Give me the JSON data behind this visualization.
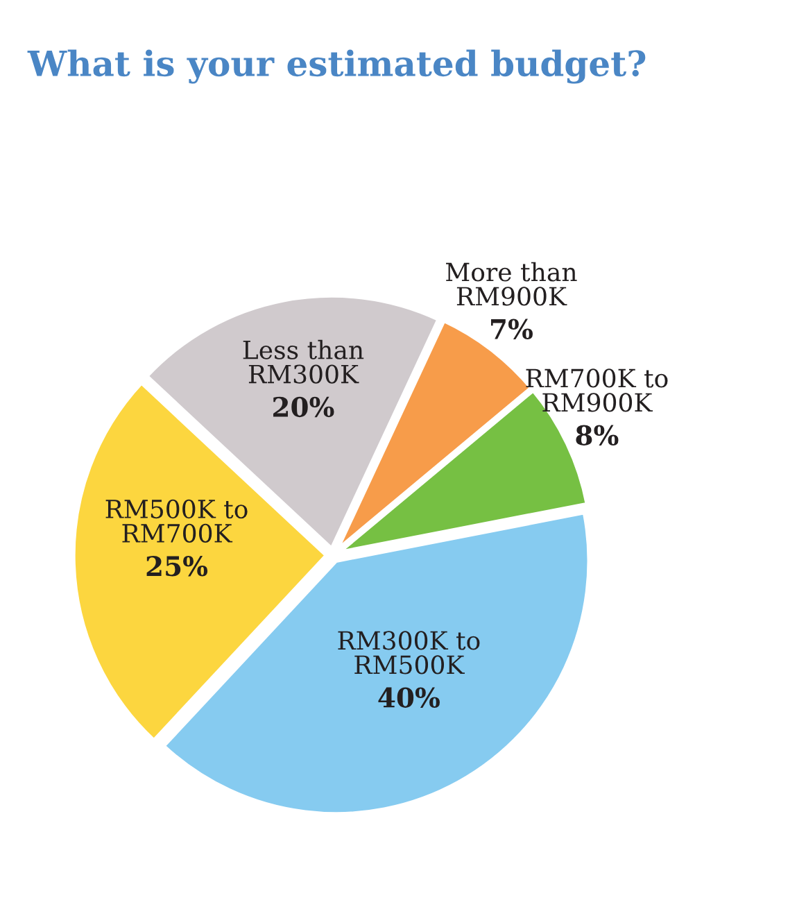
{
  "chart_data": {
    "type": "pie",
    "title": "What is your estimated budget?",
    "categories": [
      "More than\nRM900K",
      "RM700K to\nRM900K",
      "RM300K to\nRM500K",
      "RM500K to\nRM700K",
      "Less than\nRM300K"
    ],
    "values": [
      7,
      8,
      40,
      25,
      20
    ],
    "value_labels": [
      "7%",
      "8%",
      "40%",
      "25%",
      "20%"
    ],
    "colors": [
      "#f79c4a",
      "#76c043",
      "#86cbf0",
      "#fcd63f",
      "#d0cacd"
    ]
  }
}
